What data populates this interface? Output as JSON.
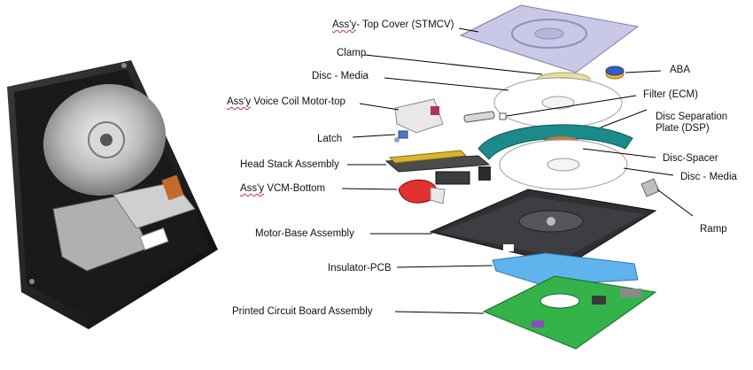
{
  "labels": {
    "top_cover_prefix": "Ass'y",
    "top_cover_rest": "- Top Cover (STMCV)",
    "clamp": "Clamp",
    "disc_media_top": "Disc - Media",
    "vcm_top_prefix": "Ass'y",
    "vcm_top_rest": " Voice Coil Motor-top",
    "latch": "Latch",
    "head_stack": "Head Stack Assembly",
    "vcm_bottom_prefix": "Ass'y",
    "vcm_bottom_rest": " VCM-Bottom",
    "motor_base": "Motor-Base Assembly",
    "insulator_pcb": "Insulator-PCB",
    "pcba": "Printed Circuit Board Assembly",
    "aba": "ABA",
    "filter": "Filter (ECM)",
    "dsp_line1": "Disc Separation",
    "dsp_line2": "Plate (DSP)",
    "disc_spacer": "Disc-Spacer",
    "disc_media_right": "Disc - Media",
    "ramp": "Ramp"
  },
  "colors": {
    "cover": "#c9c8e6",
    "dsp": "#1c8a8a",
    "spacer": "#c07a3a",
    "vcm": "#e03030",
    "insulator": "#5fb4ee",
    "pcb": "#34b34a",
    "base": "#2f2f33"
  }
}
